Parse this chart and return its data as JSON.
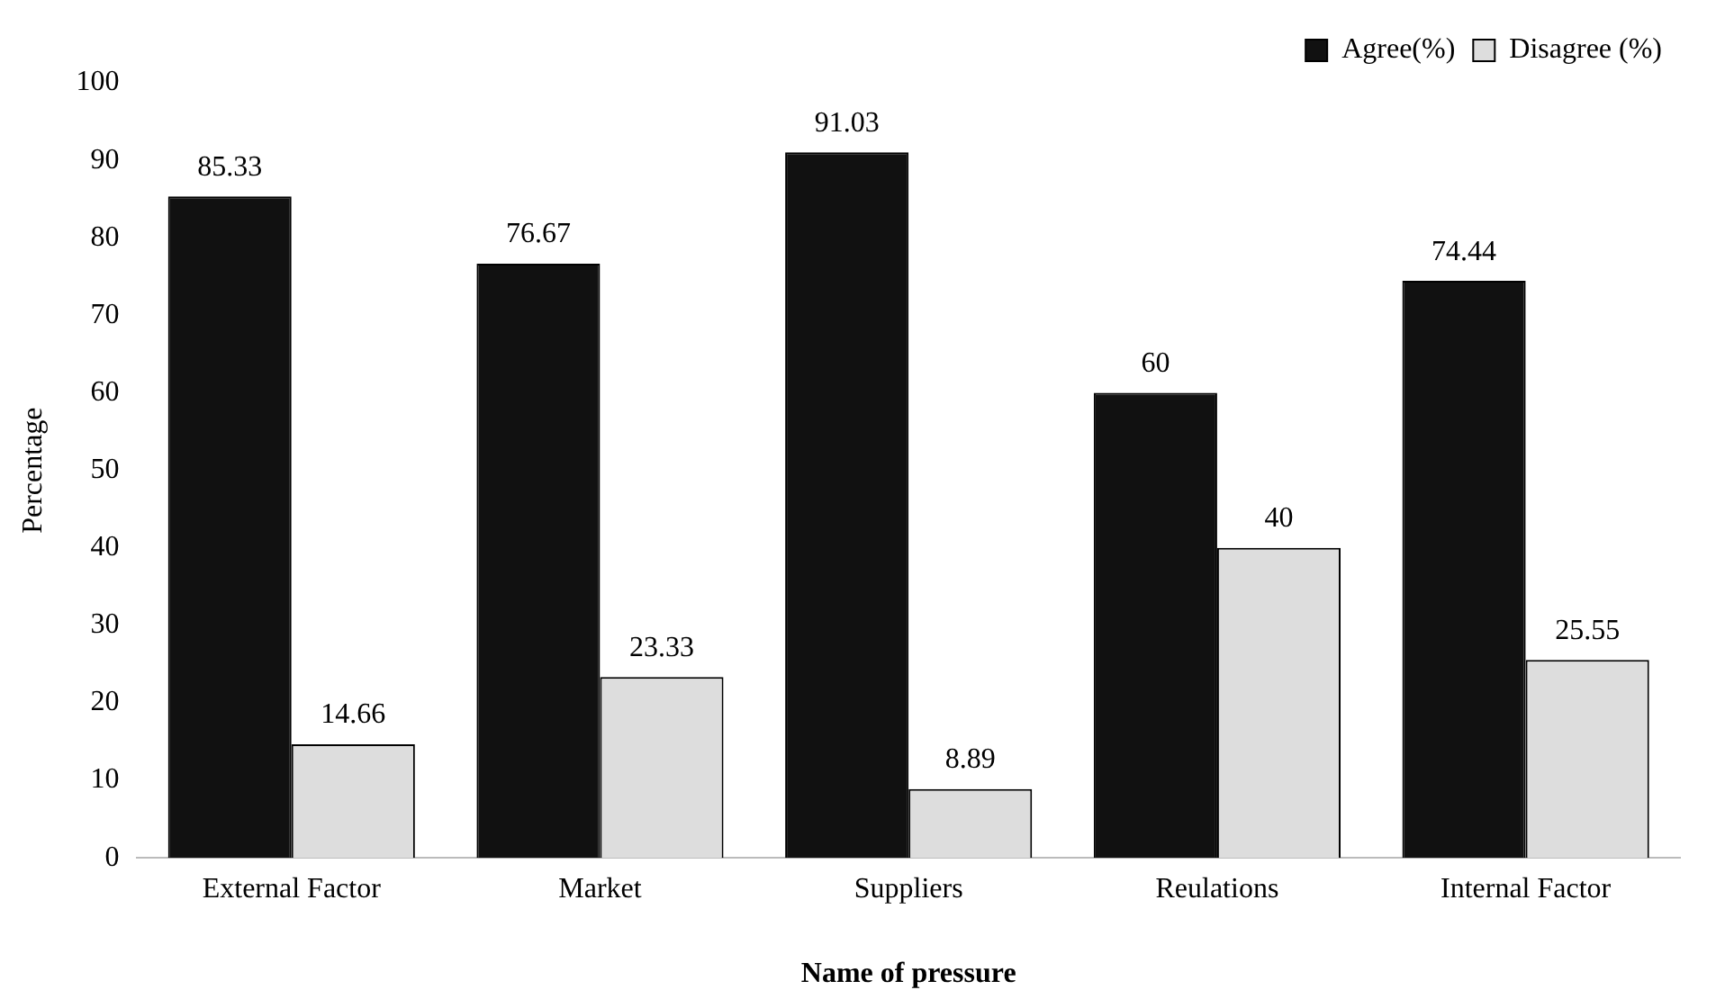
{
  "chart_data": {
    "type": "bar",
    "xlabel": "Name of pressure",
    "ylabel": "Percentage",
    "categories": [
      "External Factor",
      "Market",
      "Suppliers",
      "Reulations",
      "Internal Factor"
    ],
    "series": [
      {
        "name": "Agree(%)",
        "color": "#111111",
        "values": [
          85.33,
          76.67,
          91.03,
          60,
          74.44
        ]
      },
      {
        "name": "Disagree (%)",
        "color": "#dddddd",
        "values": [
          14.66,
          23.33,
          8.89,
          40,
          25.55
        ]
      }
    ],
    "ylim": [
      0,
      100
    ],
    "yticks": [
      0,
      10,
      20,
      30,
      40,
      50,
      60,
      70,
      80,
      90,
      100
    ],
    "grid": false,
    "legend": "top right",
    "data_labels": true
  }
}
